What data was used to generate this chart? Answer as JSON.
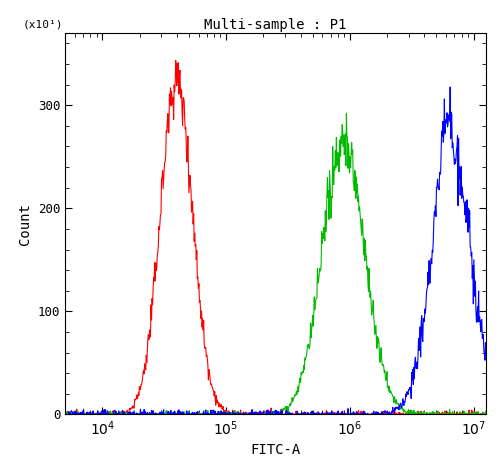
{
  "title": "Multi-sample : P1",
  "xlabel": "FITC-A",
  "ylabel": "Count",
  "ylabel2": "(x10¹)",
  "background_color": "#ffffff",
  "xlim_log": [
    3.7,
    7.1
  ],
  "ylim": [
    0,
    37
  ],
  "yticks": [
    0,
    10,
    20,
    30
  ],
  "ytick_labels": [
    "0",
    "100",
    "200",
    "300"
  ],
  "red": {
    "color": "#ff0000",
    "peak_log_x": 4.6,
    "peak_y": 32.5,
    "sigma": 0.13,
    "noise_scale": 1.5
  },
  "green": {
    "color": "#00bb00",
    "peak_log_x": 5.95,
    "peak_y": 26.5,
    "sigma": 0.17,
    "noise_scale": 1.5
  },
  "blue": {
    "color": "#0000ff",
    "peak_log_x": 6.82,
    "peak_y": 26.5,
    "sigma": 0.155,
    "noise_scale": 2.0
  }
}
